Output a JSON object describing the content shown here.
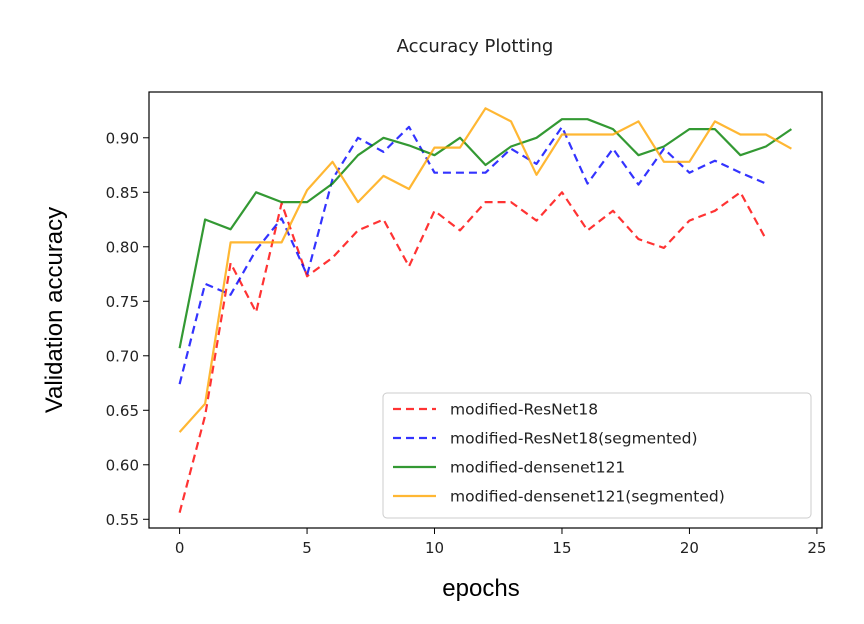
{
  "chart_data": {
    "type": "line",
    "title": "Accuracy Plotting",
    "xlabel": "epochs",
    "ylabel": "Validation accuracy",
    "xlim": [
      -1.2,
      25.2
    ],
    "ylim": [
      0.542,
      0.942
    ],
    "xticks": [
      0,
      5,
      10,
      15,
      20,
      25
    ],
    "yticks": [
      0.55,
      0.6,
      0.65,
      0.7,
      0.75,
      0.8,
      0.85,
      0.9
    ],
    "grid": false,
    "legend_position": "lower-right",
    "series": [
      {
        "name": "modified-ResNet18",
        "color": "#ff0000",
        "style": "dashed",
        "x": [
          0,
          1,
          2,
          3,
          4,
          5,
          6,
          7,
          8,
          9,
          10,
          11,
          12,
          13,
          14,
          15,
          16,
          17,
          18,
          19,
          20,
          21,
          22,
          23
        ],
        "y": [
          0.556,
          0.645,
          0.785,
          0.74,
          0.84,
          0.773,
          0.79,
          0.815,
          0.825,
          0.782,
          0.833,
          0.815,
          0.841,
          0.841,
          0.824,
          0.85,
          0.815,
          0.833,
          0.807,
          0.799,
          0.824,
          0.833,
          0.85,
          0.807
        ]
      },
      {
        "name": "modified-ResNet18(segmented)",
        "color": "#0000ff",
        "style": "dashed",
        "x": [
          0,
          1,
          2,
          3,
          4,
          5,
          6,
          7,
          8,
          9,
          10,
          11,
          12,
          13,
          14,
          15,
          16,
          17,
          18,
          19,
          20,
          21,
          22,
          23
        ],
        "y": [
          0.674,
          0.766,
          0.756,
          0.797,
          0.826,
          0.774,
          0.862,
          0.9,
          0.887,
          0.91,
          0.868,
          0.868,
          0.868,
          0.89,
          0.876,
          0.91,
          0.858,
          0.89,
          0.857,
          0.89,
          0.868,
          0.879,
          0.868,
          0.858
        ]
      },
      {
        "name": "modified-densenet121",
        "color": "#008000",
        "style": "solid",
        "x": [
          0,
          1,
          2,
          3,
          4,
          5,
          6,
          7,
          8,
          9,
          10,
          11,
          12,
          13,
          14,
          15,
          16,
          17,
          18,
          19,
          20,
          21,
          22,
          23,
          24
        ],
        "y": [
          0.707,
          0.825,
          0.816,
          0.85,
          0.841,
          0.841,
          0.858,
          0.884,
          0.9,
          0.893,
          0.884,
          0.9,
          0.875,
          0.892,
          0.9,
          0.917,
          0.917,
          0.908,
          0.884,
          0.892,
          0.908,
          0.908,
          0.884,
          0.892,
          0.908
        ]
      },
      {
        "name": "modified-densenet121(segmented)",
        "color": "#ffa500",
        "style": "solid",
        "x": [
          0,
          1,
          2,
          3,
          4,
          5,
          6,
          7,
          8,
          9,
          10,
          11,
          12,
          13,
          14,
          15,
          16,
          17,
          18,
          19,
          20,
          21,
          22,
          23,
          24
        ],
        "y": [
          0.63,
          0.656,
          0.804,
          0.804,
          0.804,
          0.852,
          0.878,
          0.841,
          0.865,
          0.853,
          0.891,
          0.891,
          0.927,
          0.915,
          0.866,
          0.903,
          0.903,
          0.903,
          0.915,
          0.878,
          0.878,
          0.915,
          0.903,
          0.903,
          0.89
        ]
      }
    ]
  }
}
